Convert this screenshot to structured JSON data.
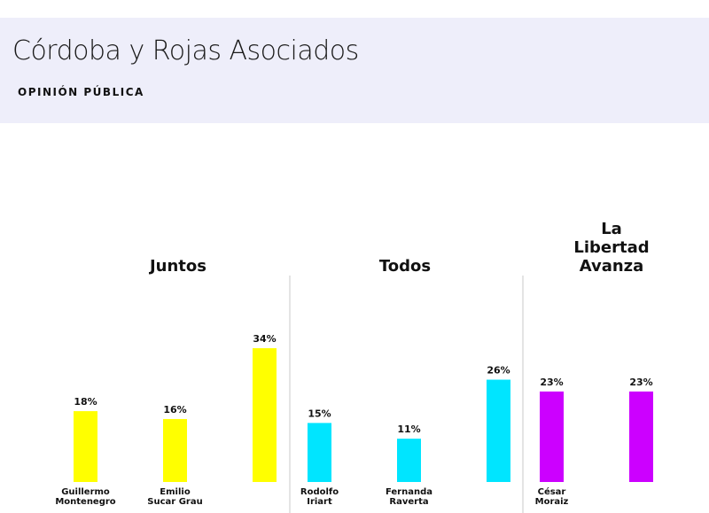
{
  "header": {
    "title": "Córdoba y Rojas Asociados",
    "subtitle": "OPINIÓN PÚBLICA"
  },
  "chart_data": {
    "type": "bar",
    "unit": "%",
    "ylim": [
      0,
      34
    ],
    "grid": false,
    "legend": "none",
    "groups": [
      {
        "label": [
          "Juntos"
        ],
        "color": "#ffff00",
        "bars": [
          {
            "label": [
              "Guillermo",
              "Montenegro"
            ],
            "value": 18
          },
          {
            "label": [
              "Emilio",
              "Sucar Grau"
            ],
            "value": 16
          },
          {
            "label": [],
            "value": 34
          }
        ]
      },
      {
        "label": [
          "Todos"
        ],
        "color": "#00e5ff",
        "bars": [
          {
            "label": [
              "Rodolfo",
              "Iriart"
            ],
            "value": 15
          },
          {
            "label": [
              "Fernanda",
              "Raverta"
            ],
            "value": 11
          },
          {
            "label": [],
            "value": 26
          }
        ]
      },
      {
        "label": [
          "La",
          "Libertad",
          "Avanza"
        ],
        "color": "#cc00ff",
        "bars": [
          {
            "label": [
              "César",
              "Moraiz"
            ],
            "value": 23
          },
          {
            "label": [],
            "value": 23
          }
        ]
      }
    ]
  }
}
